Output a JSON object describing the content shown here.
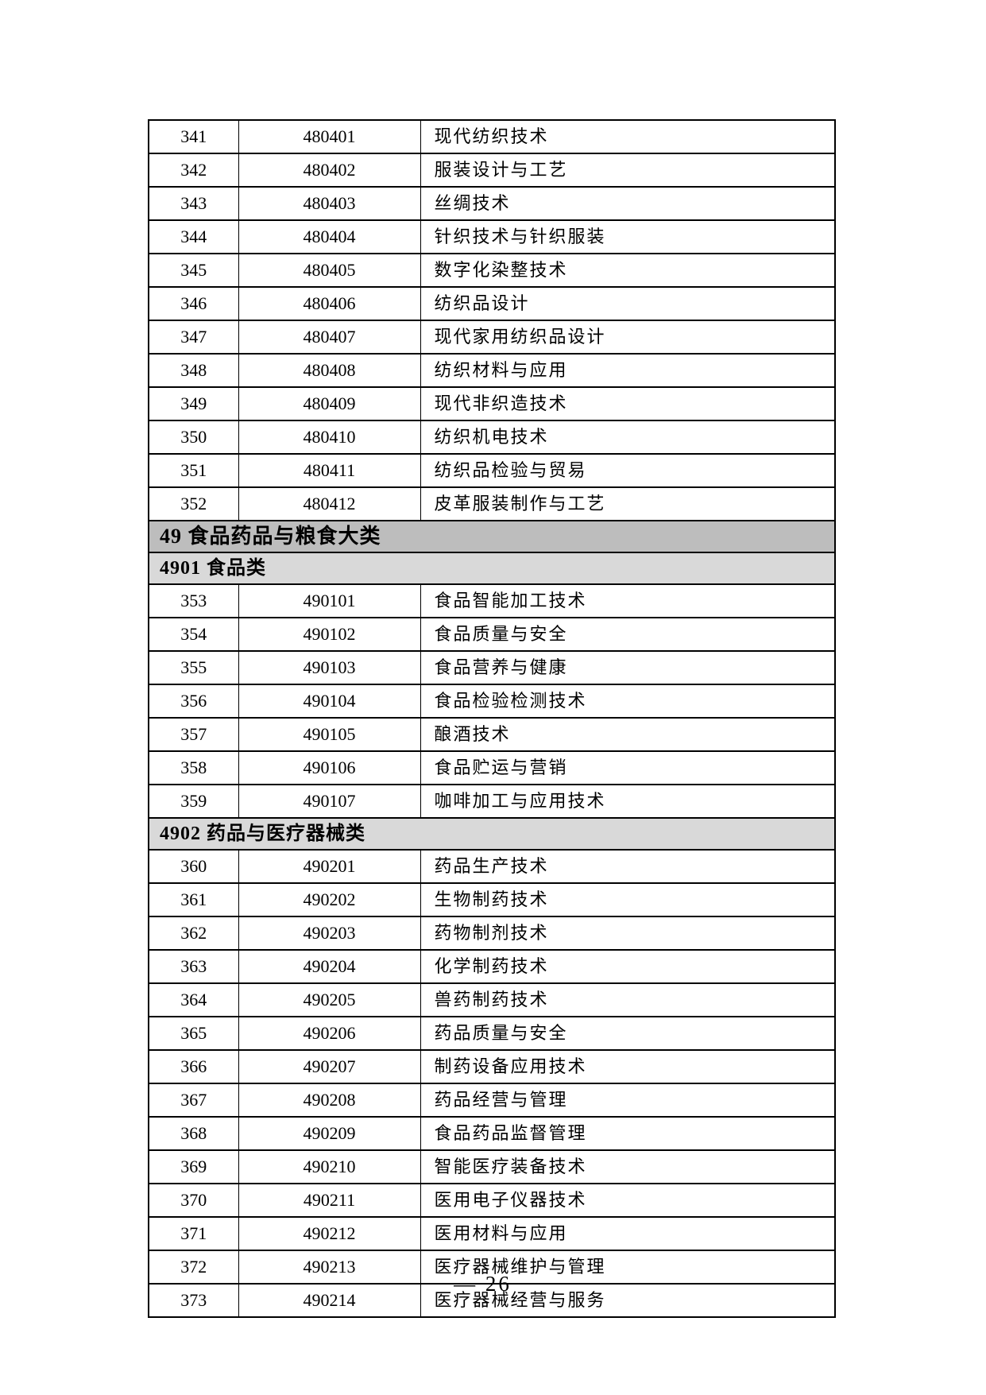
{
  "page": {
    "footer": "— 26"
  },
  "colors": {
    "major_header_bg": "#bdbdbd",
    "minor_header_bg": "#d9d9d9",
    "border": "#000000"
  },
  "table": {
    "sections": [
      {
        "type": "rows",
        "rows": [
          {
            "seq": "341",
            "code": "480401",
            "name": "现代纺织技术"
          },
          {
            "seq": "342",
            "code": "480402",
            "name": "服装设计与工艺"
          },
          {
            "seq": "343",
            "code": "480403",
            "name": "丝绸技术"
          },
          {
            "seq": "344",
            "code": "480404",
            "name": "针织技术与针织服装"
          },
          {
            "seq": "345",
            "code": "480405",
            "name": "数字化染整技术"
          },
          {
            "seq": "346",
            "code": "480406",
            "name": "纺织品设计"
          },
          {
            "seq": "347",
            "code": "480407",
            "name": "现代家用纺织品设计"
          },
          {
            "seq": "348",
            "code": "480408",
            "name": "纺织材料与应用"
          },
          {
            "seq": "349",
            "code": "480409",
            "name": "现代非织造技术"
          },
          {
            "seq": "350",
            "code": "480410",
            "name": "纺织机电技术"
          },
          {
            "seq": "351",
            "code": "480411",
            "name": "纺织品检验与贸易"
          },
          {
            "seq": "352",
            "code": "480412",
            "name": "皮革服装制作与工艺"
          }
        ]
      },
      {
        "type": "header-major",
        "label": "49 食品药品与粮食大类"
      },
      {
        "type": "header-minor",
        "label": "4901 食品类"
      },
      {
        "type": "rows",
        "rows": [
          {
            "seq": "353",
            "code": "490101",
            "name": "食品智能加工技术"
          },
          {
            "seq": "354",
            "code": "490102",
            "name": "食品质量与安全"
          },
          {
            "seq": "355",
            "code": "490103",
            "name": "食品营养与健康"
          },
          {
            "seq": "356",
            "code": "490104",
            "name": "食品检验检测技术"
          },
          {
            "seq": "357",
            "code": "490105",
            "name": "酿酒技术"
          },
          {
            "seq": "358",
            "code": "490106",
            "name": "食品贮运与营销"
          },
          {
            "seq": "359",
            "code": "490107",
            "name": "咖啡加工与应用技术"
          }
        ]
      },
      {
        "type": "header-minor",
        "label": "4902 药品与医疗器械类"
      },
      {
        "type": "rows",
        "rows": [
          {
            "seq": "360",
            "code": "490201",
            "name": "药品生产技术"
          },
          {
            "seq": "361",
            "code": "490202",
            "name": "生物制药技术"
          },
          {
            "seq": "362",
            "code": "490203",
            "name": "药物制剂技术"
          },
          {
            "seq": "363",
            "code": "490204",
            "name": "化学制药技术"
          },
          {
            "seq": "364",
            "code": "490205",
            "name": "兽药制药技术"
          },
          {
            "seq": "365",
            "code": "490206",
            "name": "药品质量与安全"
          },
          {
            "seq": "366",
            "code": "490207",
            "name": "制药设备应用技术"
          },
          {
            "seq": "367",
            "code": "490208",
            "name": "药品经营与管理"
          },
          {
            "seq": "368",
            "code": "490209",
            "name": "食品药品监督管理"
          },
          {
            "seq": "369",
            "code": "490210",
            "name": "智能医疗装备技术"
          },
          {
            "seq": "370",
            "code": "490211",
            "name": "医用电子仪器技术"
          },
          {
            "seq": "371",
            "code": "490212",
            "name": "医用材料与应用"
          },
          {
            "seq": "372",
            "code": "490213",
            "name": "医疗器械维护与管理"
          },
          {
            "seq": "373",
            "code": "490214",
            "name": "医疗器械经营与服务"
          }
        ]
      }
    ]
  }
}
